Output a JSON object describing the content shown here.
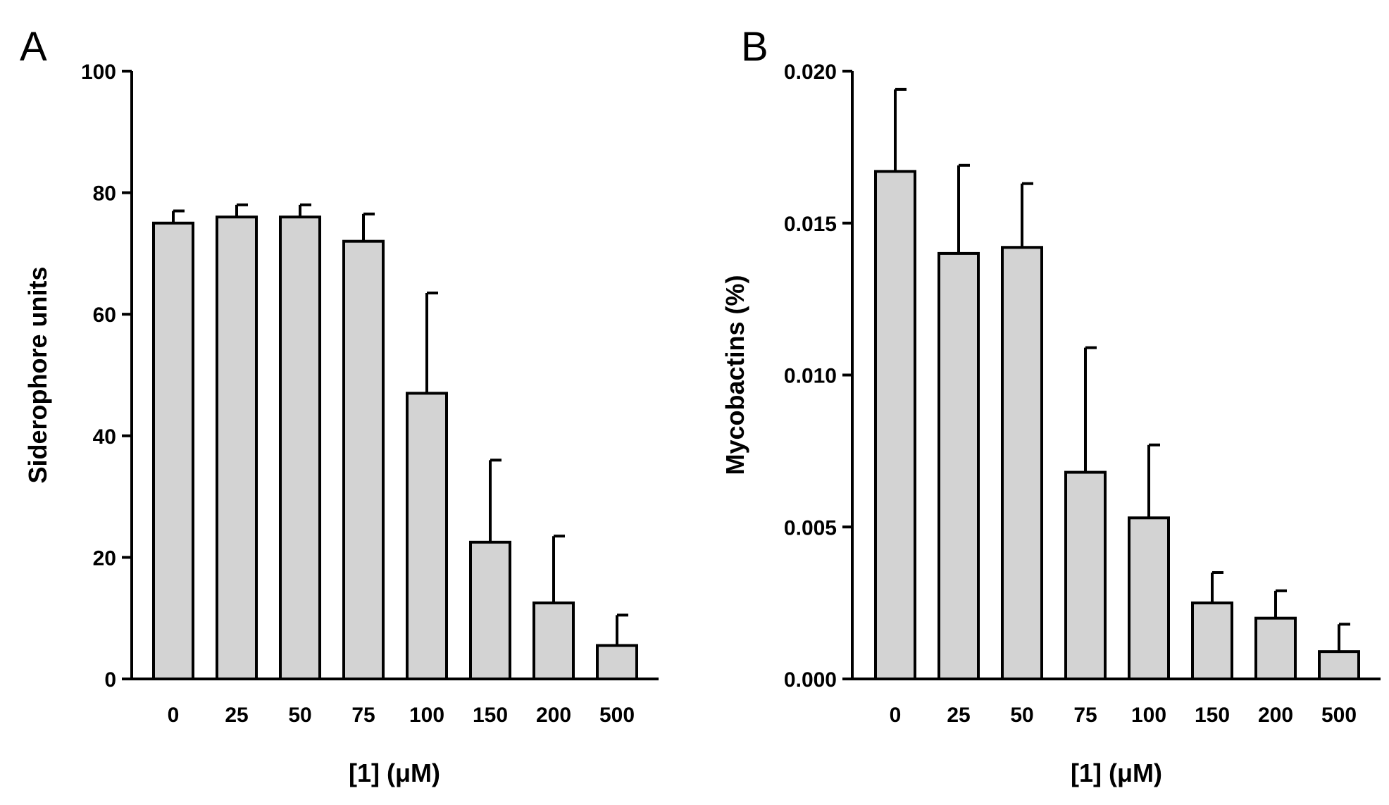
{
  "figure": {
    "background_color": "#ffffff"
  },
  "chart_data": [
    {
      "panel_label": "A",
      "type": "bar",
      "categories": [
        "0",
        "25",
        "50",
        "75",
        "100",
        "150",
        "200",
        "500"
      ],
      "values": [
        75,
        76,
        76,
        72,
        47,
        22.5,
        12.5,
        5.5
      ],
      "errors": [
        2,
        2,
        2,
        4.5,
        16.5,
        13.5,
        11,
        5
      ],
      "title": "",
      "xlabel": "[1] (μM)",
      "ylabel": "Siderophore units",
      "ylim": [
        0,
        100
      ],
      "yticks": [
        0,
        20,
        40,
        60,
        80,
        100
      ],
      "ytick_labels": [
        "0",
        "20",
        "40",
        "60",
        "80",
        "100"
      ],
      "bar_color": "#d3d3d3",
      "edge_color": "#000000",
      "grid": false,
      "legend": "none"
    },
    {
      "panel_label": "B",
      "type": "bar",
      "categories": [
        "0",
        "25",
        "50",
        "75",
        "100",
        "150",
        "200",
        "500"
      ],
      "values": [
        0.0167,
        0.014,
        0.0142,
        0.0068,
        0.0053,
        0.0025,
        0.002,
        0.0009
      ],
      "errors": [
        0.0027,
        0.0029,
        0.0021,
        0.0041,
        0.0024,
        0.001,
        0.0009,
        0.0009
      ],
      "title": "",
      "xlabel": "[1] (μM)",
      "ylabel": "Mycobactins (%)",
      "ylim": [
        0,
        0.02
      ],
      "yticks": [
        0,
        0.005,
        0.01,
        0.015,
        0.02
      ],
      "ytick_labels": [
        "0.000",
        "0.005",
        "0.010",
        "0.015",
        "0.020"
      ],
      "bar_color": "#d3d3d3",
      "edge_color": "#000000",
      "grid": false,
      "legend": "none"
    }
  ]
}
